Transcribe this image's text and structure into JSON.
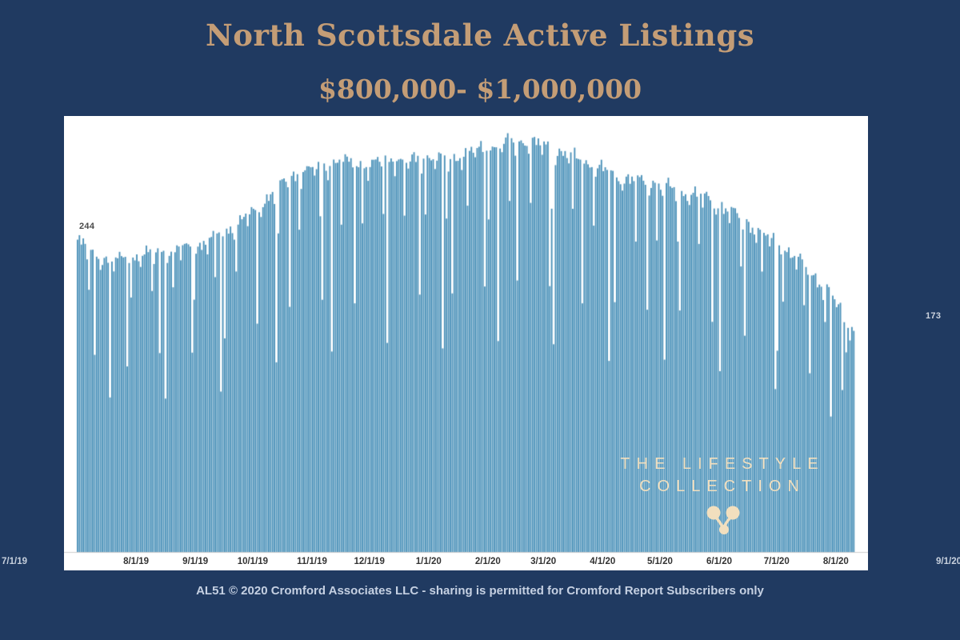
{
  "page": {
    "title": "North Scottsdale Active Listings",
    "subtitle": "$800,000- $1,000,000",
    "footer": "AL51 © 2020 Cromford Associates LLC - sharing is permitted for Cromford Report Subscribers only",
    "background_color": "#203a61",
    "title_color": "#c49d76"
  },
  "watermark": {
    "line1": "THE LIFESTYLE",
    "line2": "COLLECTION",
    "color": "#f2dfbe"
  },
  "chart_data": {
    "type": "bar",
    "title": "North Scottsdale Active Listings",
    "subtitle": "$800,000- $1,000,000",
    "bar_color": "#4a91b9",
    "plot_background": "#ffffff",
    "ylim": [
      0,
      340
    ],
    "grid": false,
    "legend": false,
    "x_tick_labels": [
      "7/1/19",
      "8/1/19",
      "9/1/19",
      "10/1/19",
      "11/1/19",
      "12/1/19",
      "1/1/20",
      "2/1/20",
      "3/1/20",
      "4/1/20",
      "5/1/20",
      "6/1/20",
      "7/1/20",
      "8/1/20",
      "9/1/20"
    ],
    "x_tick_day_offsets": [
      0,
      31,
      62,
      92,
      123,
      153,
      184,
      215,
      244,
      275,
      305,
      336,
      366,
      397,
      428
    ],
    "first_point": {
      "date": "7/1/19",
      "value": 244,
      "label": "244"
    },
    "last_point": {
      "date": "8/10/20",
      "value": 173,
      "label": "173"
    },
    "keypoints": [
      {
        "day": 0,
        "date": "7/1/19",
        "value": 244
      },
      {
        "day": 9,
        "date": "7/10/19",
        "value": 233
      },
      {
        "day": 19,
        "date": "7/20/19",
        "value": 228
      },
      {
        "day": 31,
        "date": "8/1/19",
        "value": 232
      },
      {
        "day": 45,
        "date": "8/15/19",
        "value": 236
      },
      {
        "day": 62,
        "date": "9/1/19",
        "value": 239
      },
      {
        "day": 76,
        "date": "9/15/19",
        "value": 250
      },
      {
        "day": 92,
        "date": "10/1/19",
        "value": 266
      },
      {
        "day": 101,
        "date": "10/10/19",
        "value": 280
      },
      {
        "day": 111,
        "date": "10/20/19",
        "value": 294
      },
      {
        "day": 123,
        "date": "11/1/19",
        "value": 300
      },
      {
        "day": 137,
        "date": "11/15/19",
        "value": 306
      },
      {
        "day": 153,
        "date": "12/1/19",
        "value": 302
      },
      {
        "day": 162,
        "date": "12/10/19",
        "value": 310
      },
      {
        "day": 172,
        "date": "12/20/19",
        "value": 305
      },
      {
        "day": 184,
        "date": "1/1/20",
        "value": 310
      },
      {
        "day": 193,
        "date": "1/10/20",
        "value": 305
      },
      {
        "day": 203,
        "date": "1/20/20",
        "value": 313
      },
      {
        "day": 215,
        "date": "2/1/20",
        "value": 316
      },
      {
        "day": 224,
        "date": "2/10/20",
        "value": 320
      },
      {
        "day": 234,
        "date": "2/20/20",
        "value": 322
      },
      {
        "day": 244,
        "date": "3/1/20",
        "value": 318
      },
      {
        "day": 253,
        "date": "3/10/20",
        "value": 313
      },
      {
        "day": 263,
        "date": "3/20/20",
        "value": 307
      },
      {
        "day": 275,
        "date": "4/1/20",
        "value": 299
      },
      {
        "day": 284,
        "date": "4/10/20",
        "value": 293
      },
      {
        "day": 294,
        "date": "4/20/20",
        "value": 290
      },
      {
        "day": 305,
        "date": "5/1/20",
        "value": 288
      },
      {
        "day": 314,
        "date": "5/10/20",
        "value": 283
      },
      {
        "day": 324,
        "date": "5/20/20",
        "value": 280
      },
      {
        "day": 336,
        "date": "6/1/20",
        "value": 272
      },
      {
        "day": 345,
        "date": "6/10/20",
        "value": 263
      },
      {
        "day": 355,
        "date": "6/20/20",
        "value": 253
      },
      {
        "day": 366,
        "date": "7/1/20",
        "value": 242
      },
      {
        "day": 375,
        "date": "7/10/20",
        "value": 231
      },
      {
        "day": 385,
        "date": "7/20/20",
        "value": 217
      },
      {
        "day": 397,
        "date": "8/1/20",
        "value": 197
      },
      {
        "day": 401,
        "date": "8/5/20",
        "value": 186
      },
      {
        "day": 406,
        "date": "8/10/20",
        "value": 173
      }
    ]
  }
}
